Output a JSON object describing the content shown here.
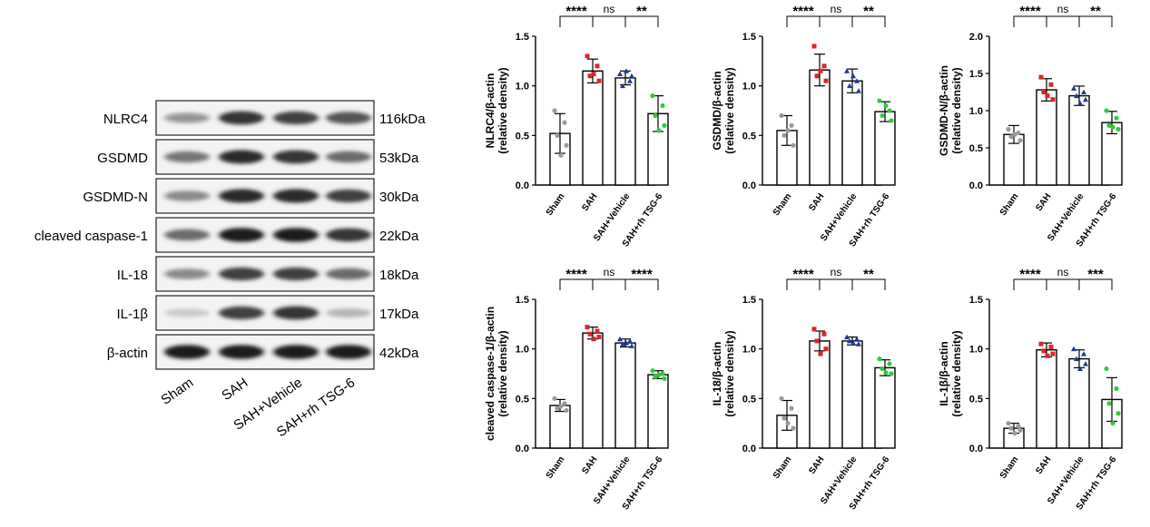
{
  "western_blot": {
    "bands": [
      {
        "label": "NLRC4",
        "size": "116kDa",
        "intensity": [
          0.4,
          0.85,
          0.8,
          0.7
        ]
      },
      {
        "label": "GSDMD",
        "size": "53kDa",
        "intensity": [
          0.55,
          0.9,
          0.85,
          0.6
        ]
      },
      {
        "label": "GSDMD-N",
        "size": "30kDa",
        "intensity": [
          0.45,
          0.9,
          0.9,
          0.8
        ]
      },
      {
        "label": "cleaved caspase-1",
        "size": "22kDa",
        "intensity": [
          0.6,
          0.95,
          0.95,
          0.85
        ]
      },
      {
        "label": "IL-18",
        "size": "18kDa",
        "intensity": [
          0.45,
          0.8,
          0.8,
          0.6
        ]
      },
      {
        "label": "IL-1β",
        "size": "17kDa",
        "intensity": [
          0.15,
          0.8,
          0.85,
          0.25
        ]
      },
      {
        "label": "β-actin",
        "size": "42kDa",
        "intensity": [
          0.95,
          0.95,
          0.95,
          0.95
        ]
      }
    ],
    "lanes": [
      "Sham",
      "SAH",
      "SAH+Vehicle",
      "SAH+rh TSG-6"
    ]
  },
  "chart_data": [
    {
      "type": "bar",
      "ylabel": "NLRC4/β-actin",
      "ylabel2": "(relative density)",
      "categories": [
        "Sham",
        "SAH",
        "SAH+Vehicle",
        "SAH+rh TSG-6"
      ],
      "values": [
        0.52,
        1.15,
        1.08,
        0.72
      ],
      "errors": [
        0.2,
        0.12,
        0.07,
        0.18
      ],
      "points": [
        [
          0.75,
          0.63,
          0.5,
          0.4,
          0.3
        ],
        [
          1.3,
          1.2,
          1.1,
          1.05,
          1.12
        ],
        [
          1.12,
          1.05,
          1.0,
          1.1,
          1.15
        ],
        [
          0.9,
          0.8,
          0.7,
          0.6,
          0.55
        ]
      ],
      "ylim": [
        0,
        1.5
      ],
      "yticks": [
        "0.0",
        "0.5",
        "1.0",
        "1.5"
      ],
      "significance": [
        "****",
        "ns",
        "**"
      ]
    },
    {
      "type": "bar",
      "ylabel": "GSDMD/β-actin",
      "ylabel2": "(relative density)",
      "categories": [
        "Sham",
        "SAH",
        "SAH+Vehicle",
        "SAH+rh TSG-6"
      ],
      "values": [
        0.55,
        1.16,
        1.05,
        0.74
      ],
      "errors": [
        0.15,
        0.16,
        0.12,
        0.1
      ],
      "points": [
        [
          0.7,
          0.6,
          0.5,
          0.4,
          0.55
        ],
        [
          1.4,
          1.2,
          1.1,
          1.05,
          1.15
        ],
        [
          1.15,
          1.05,
          1.0,
          0.95,
          1.1
        ],
        [
          0.85,
          0.75,
          0.7,
          0.65,
          0.8
        ]
      ],
      "ylim": [
        0,
        1.5
      ],
      "yticks": [
        "0.0",
        "0.5",
        "1.0",
        "1.5"
      ],
      "significance": [
        "****",
        "ns",
        "**"
      ]
    },
    {
      "type": "bar",
      "ylabel": "GSDMD-N/β-actin",
      "ylabel2": "(relative density)",
      "categories": [
        "Sham",
        "SAH",
        "SAH+Vehicle",
        "SAH+rh TSG-6"
      ],
      "values": [
        0.68,
        1.28,
        1.2,
        0.84
      ],
      "errors": [
        0.12,
        0.15,
        0.13,
        0.15
      ],
      "points": [
        [
          0.75,
          0.7,
          0.65,
          0.6,
          0.68
        ],
        [
          1.45,
          1.35,
          1.25,
          1.15,
          1.2
        ],
        [
          1.3,
          1.25,
          1.2,
          1.15,
          1.1
        ],
        [
          1.0,
          0.9,
          0.8,
          0.75,
          0.78
        ]
      ],
      "ylim": [
        0,
        2.0
      ],
      "yticks": [
        "0.0",
        "0.5",
        "1.0",
        "1.5",
        "2.0"
      ],
      "significance": [
        "****",
        "ns",
        "**"
      ]
    },
    {
      "type": "bar",
      "ylabel": "cleaved caspase-1/β-actin",
      "ylabel2": "(relative density)",
      "categories": [
        "Sham",
        "SAH",
        "SAH+Vehicle",
        "SAH+rh TSG-6"
      ],
      "values": [
        0.43,
        1.16,
        1.06,
        0.74
      ],
      "errors": [
        0.06,
        0.06,
        0.04,
        0.04
      ],
      "points": [
        [
          0.5,
          0.45,
          0.4,
          0.38,
          0.42
        ],
        [
          1.22,
          1.18,
          1.15,
          1.12,
          1.1
        ],
        [
          1.1,
          1.08,
          1.05,
          1.03,
          1.06
        ],
        [
          0.78,
          0.75,
          0.72,
          0.7,
          0.74
        ]
      ],
      "ylim": [
        0,
        1.5
      ],
      "yticks": [
        "0.0",
        "0.5",
        "1.0",
        "1.5"
      ],
      "significance": [
        "****",
        "ns",
        "****"
      ]
    },
    {
      "type": "bar",
      "ylabel": "IL-18/β-actin",
      "ylabel2": "(relative density)",
      "categories": [
        "Sham",
        "SAH",
        "SAH+Vehicle",
        "SAH+rh TSG-6"
      ],
      "values": [
        0.33,
        1.08,
        1.08,
        0.81
      ],
      "errors": [
        0.15,
        0.1,
        0.04,
        0.08
      ],
      "points": [
        [
          0.5,
          0.4,
          0.3,
          0.2,
          0.25
        ],
        [
          1.2,
          1.15,
          1.08,
          1.0,
          0.95
        ],
        [
          1.12,
          1.1,
          1.08,
          1.05,
          1.06
        ],
        [
          0.9,
          0.85,
          0.8,
          0.75,
          0.76
        ]
      ],
      "ylim": [
        0,
        1.5
      ],
      "yticks": [
        "0.0",
        "0.5",
        "1.0",
        "1.5"
      ],
      "significance": [
        "****",
        "ns",
        "**"
      ]
    },
    {
      "type": "bar",
      "ylabel": "IL-1β/β-actin",
      "ylabel2": "(relative density)",
      "categories": [
        "Sham",
        "SAH",
        "SAH+Vehicle",
        "SAH+rh TSG-6"
      ],
      "values": [
        0.2,
        0.99,
        0.9,
        0.49
      ],
      "errors": [
        0.05,
        0.07,
        0.09,
        0.22
      ],
      "points": [
        [
          0.25,
          0.22,
          0.2,
          0.18,
          0.15
        ],
        [
          1.05,
          1.02,
          0.98,
          0.95,
          0.93
        ],
        [
          1.0,
          0.95,
          0.9,
          0.85,
          0.8
        ],
        [
          0.8,
          0.6,
          0.45,
          0.35,
          0.25
        ]
      ],
      "ylim": [
        0,
        1.5
      ],
      "yticks": [
        "0.0",
        "0.5",
        "1.0",
        "1.5"
      ],
      "significance": [
        "****",
        "ns",
        "***"
      ]
    }
  ],
  "colors": {
    "groups": [
      "#9a9a9a",
      "#d62828",
      "#1f3a93",
      "#2ecc40"
    ],
    "axis": "#000000",
    "bar_fill": "#ffffff"
  }
}
